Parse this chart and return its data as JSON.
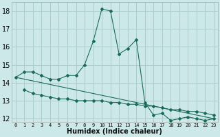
{
  "xlabel": "Humidex (Indice chaleur)",
  "bg_color": "#cce8e8",
  "grid_color": "#aacccc",
  "line_color": "#1a6b5a",
  "xlim": [
    -0.5,
    23.5
  ],
  "ylim": [
    11.8,
    18.5
  ],
  "yticks": [
    12,
    13,
    14,
    15,
    16,
    17,
    18
  ],
  "xticks": [
    0,
    1,
    2,
    3,
    4,
    5,
    6,
    7,
    8,
    9,
    10,
    11,
    12,
    13,
    14,
    15,
    16,
    17,
    18,
    19,
    20,
    21,
    22,
    23
  ],
  "series1_x": [
    0,
    1,
    2,
    3,
    4,
    5,
    6,
    7,
    8,
    9,
    10,
    11,
    12,
    13,
    14,
    15,
    16,
    17,
    18,
    19,
    20,
    21,
    22,
    23
  ],
  "series1_y": [
    14.3,
    14.6,
    14.6,
    14.4,
    14.2,
    14.2,
    14.4,
    14.4,
    15.0,
    16.3,
    18.1,
    18.0,
    15.6,
    15.9,
    16.4,
    12.9,
    12.2,
    12.3,
    11.9,
    12.0,
    12.1,
    12.0,
    11.9,
    12.0
  ],
  "series2_x": [
    1,
    2,
    3,
    4,
    5,
    6,
    7,
    8,
    9,
    10,
    11,
    12,
    13,
    14,
    15,
    16,
    17,
    18,
    19,
    20,
    21,
    22,
    23
  ],
  "series2_y": [
    13.6,
    13.4,
    13.3,
    13.2,
    13.1,
    13.1,
    13.0,
    13.0,
    13.0,
    13.0,
    12.9,
    12.9,
    12.8,
    12.8,
    12.7,
    12.7,
    12.6,
    12.5,
    12.5,
    12.4,
    12.4,
    12.3,
    12.2
  ],
  "series3_x": [
    0,
    23
  ],
  "series3_y": [
    14.3,
    12.0
  ],
  "xlabel_fontsize": 7,
  "ytick_fontsize": 7,
  "xtick_fontsize": 5
}
